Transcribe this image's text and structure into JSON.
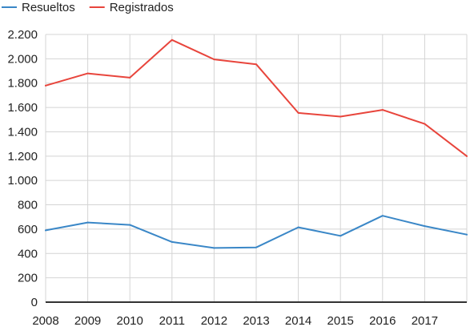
{
  "chart_data": {
    "type": "line",
    "title": "",
    "xlabel": "",
    "ylabel": "",
    "legend_position": "top-left",
    "grid": true,
    "x": [
      "2008",
      "2009",
      "2010",
      "2011",
      "2012",
      "2013",
      "2014",
      "2015",
      "2016",
      "2017",
      "2018"
    ],
    "x_tick_labels": [
      "2008",
      "2009",
      "2010",
      "2011",
      "2012",
      "2013",
      "2014",
      "2015",
      "2016",
      "2017"
    ],
    "ylim": [
      0,
      2200
    ],
    "y_ticks": [
      0,
      200,
      400,
      600,
      800,
      1000,
      1200,
      1400,
      1600,
      1800,
      2000,
      2200
    ],
    "y_tick_labels": [
      "0",
      "200",
      "400",
      "600",
      "800",
      "1.000",
      "1.200",
      "1.400",
      "1.600",
      "1.800",
      "2.000",
      "2.200"
    ],
    "series": [
      {
        "name": "Resueltos",
        "color": "#3a87c7",
        "values": [
          590,
          655,
          635,
          495,
          445,
          450,
          615,
          545,
          710,
          625,
          555
        ]
      },
      {
        "name": "Registrados",
        "color": "#e8453c",
        "values": [
          1780,
          1880,
          1845,
          2155,
          1995,
          1955,
          1555,
          1525,
          1580,
          1465,
          1200
        ]
      }
    ]
  }
}
